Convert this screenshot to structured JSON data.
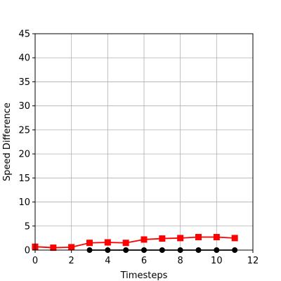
{
  "chart_data": {
    "type": "line",
    "xlabel": "Timesteps",
    "ylabel": "Speed Difference",
    "xlim": [
      0,
      12
    ],
    "ylim": [
      0,
      45
    ],
    "xticks": [
      0,
      2,
      4,
      6,
      8,
      10,
      12
    ],
    "yticks": [
      0,
      5,
      10,
      15,
      20,
      25,
      30,
      35,
      40,
      45
    ],
    "grid": true,
    "series": [
      {
        "color": "#ff0000",
        "marker": "square",
        "x": [
          0,
          1,
          2,
          3,
          4,
          5,
          6,
          7,
          8,
          9,
          10,
          11
        ],
        "y": [
          0.7,
          0.5,
          0.6,
          1.5,
          1.6,
          1.5,
          2.2,
          2.4,
          2.5,
          2.7,
          2.7,
          2.5
        ]
      },
      {
        "color": "#000000",
        "marker": "circle",
        "x": [
          3,
          4,
          5,
          6,
          7,
          8,
          9,
          10,
          11
        ],
        "y": [
          0,
          0,
          0,
          0,
          0,
          0,
          0,
          0,
          0
        ]
      }
    ]
  }
}
